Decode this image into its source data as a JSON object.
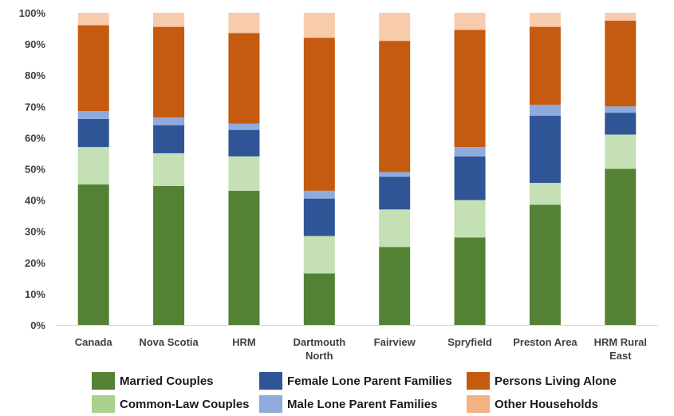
{
  "chart_data": {
    "type": "bar",
    "stacked": true,
    "percent": true,
    "title": "",
    "xlabel": "",
    "ylabel": "",
    "ylim": [
      0,
      100
    ],
    "yticks": [
      "0%",
      "10%",
      "20%",
      "30%",
      "40%",
      "50%",
      "60%",
      "70%",
      "80%",
      "90%",
      "100%"
    ],
    "grid": false,
    "legend_position": "bottom",
    "categories": [
      [
        "Canada"
      ],
      [
        "Nova Scotia"
      ],
      [
        "HRM"
      ],
      [
        "Dartmouth",
        "North"
      ],
      [
        "Fairview"
      ],
      [
        "Spryfield"
      ],
      [
        "Preston Area"
      ],
      [
        "HRM Rural",
        "East"
      ]
    ],
    "series": [
      {
        "name": "Married Couples",
        "color": "#548235",
        "values": [
          45,
          44.5,
          43,
          16.5,
          25,
          28,
          38.5,
          50
        ]
      },
      {
        "name": "Common-Law Couples",
        "color": "#c5e0b4",
        "values": [
          12,
          10.5,
          11,
          12,
          12,
          12,
          7,
          11
        ]
      },
      {
        "name": "Female Lone Parent Families",
        "color": "#2f5597",
        "values": [
          9,
          9,
          8.5,
          12,
          10.5,
          14,
          21.5,
          7
        ]
      },
      {
        "name": "Male Lone Parent Families",
        "color": "#8faadc",
        "values": [
          2.5,
          2.5,
          2,
          2.5,
          1.5,
          3,
          3.5,
          2
        ]
      },
      {
        "name": "Persons Living Alone",
        "color": "#c55a11",
        "values": [
          27.5,
          29,
          29,
          49,
          42,
          37.5,
          25,
          27.5
        ]
      },
      {
        "name": "Other Households",
        "color": "#f8cbad",
        "values": [
          4,
          4.5,
          6.5,
          8,
          9,
          5.5,
          4.5,
          2.5
        ]
      }
    ]
  },
  "legend": {
    "items": [
      {
        "label": "Married Couples",
        "color": "#548235"
      },
      {
        "label": "Female Lone Parent Families",
        "color": "#2f5597"
      },
      {
        "label": "Persons Living Alone",
        "color": "#c55a11"
      },
      {
        "label": "Common-Law Couples",
        "color": "#a9d18e"
      },
      {
        "label": "Male Lone Parent Families",
        "color": "#8faadc"
      },
      {
        "label": "Other Households",
        "color": "#f4b183"
      }
    ]
  }
}
